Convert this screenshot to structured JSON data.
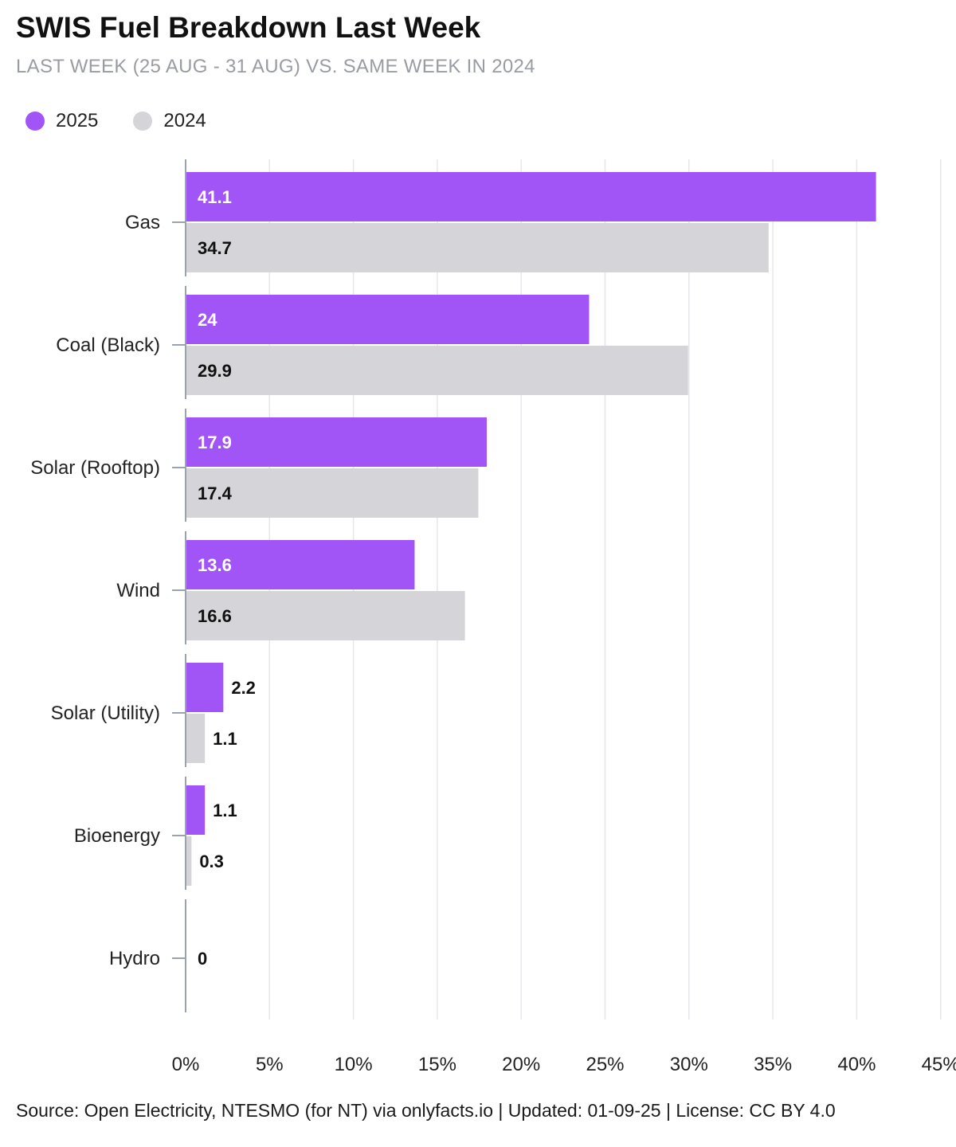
{
  "title": "SWIS Fuel Breakdown Last Week",
  "subtitle": "LAST WEEK (25 AUG - 31 AUG) VS. SAME WEEK IN 2024",
  "source": "Source: Open Electricity, NTESMO (for NT) via onlyfacts.io | Updated: 01-09-25 | License: CC BY 4.0",
  "legend": [
    {
      "label": "2025",
      "color": "#a155f7"
    },
    {
      "label": "2024",
      "color": "#d4d4d9"
    }
  ],
  "chart_data": {
    "type": "bar",
    "orientation": "horizontal",
    "categories": [
      "Gas",
      "Coal (Black)",
      "Solar (Rooftop)",
      "Wind",
      "Solar (Utility)",
      "Bioenergy",
      "Hydro"
    ],
    "series": [
      {
        "name": "2025",
        "color": "#a155f7",
        "values": [
          41.1,
          24,
          17.9,
          13.6,
          2.2,
          1.1,
          0
        ]
      },
      {
        "name": "2024",
        "color": "#d4d4d9",
        "values": [
          34.7,
          29.9,
          17.4,
          16.6,
          1.1,
          0.3,
          0
        ]
      }
    ],
    "value_labels_2025": [
      "41.1",
      "24",
      "17.9",
      "13.6",
      "2.2",
      "1.1",
      "0"
    ],
    "value_labels_2024": [
      "34.7",
      "29.9",
      "17.4",
      "16.6",
      "1.1",
      "0.3",
      ""
    ],
    "xlim": [
      0,
      45
    ],
    "xticks": [
      0,
      5,
      10,
      15,
      20,
      25,
      30,
      35,
      40,
      45
    ],
    "xtick_labels": [
      "0%",
      "5%",
      "10%",
      "15%",
      "20%",
      "25%",
      "30%",
      "35%",
      "40%",
      "45%"
    ],
    "grid": true,
    "legend_position": "top-left"
  }
}
